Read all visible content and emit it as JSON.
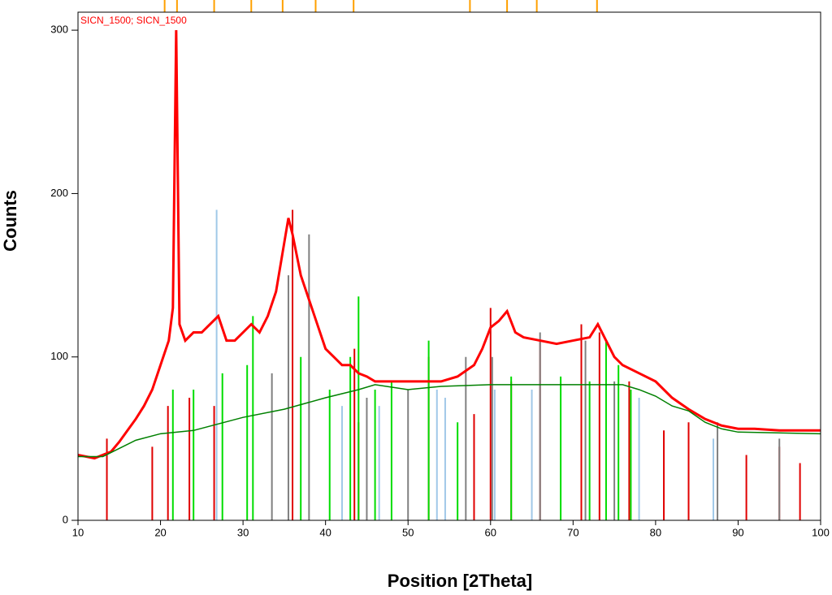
{
  "chart_data": {
    "type": "line",
    "xlabel": "Position [2Theta]",
    "ylabel": "Counts",
    "xlim": [
      10,
      100
    ],
    "ylim": [
      0,
      311
    ],
    "xticks": [
      10,
      20,
      30,
      40,
      50,
      60,
      70,
      80,
      90,
      100
    ],
    "yticks": [
      0,
      100,
      200,
      300
    ],
    "series": [
      {
        "name": "SICN_1500; SICN_1500",
        "color": "#ff0000",
        "x": [
          10,
          12,
          14,
          15,
          16,
          17,
          18,
          19,
          20,
          21,
          21.5,
          21.9,
          22.3,
          23,
          24,
          25,
          26,
          27,
          28,
          29,
          30,
          31,
          32,
          33,
          34,
          35,
          35.5,
          36,
          37,
          38,
          39,
          40,
          41,
          42,
          43,
          44,
          45,
          46,
          47,
          48,
          50,
          52,
          54,
          56,
          58,
          59,
          60,
          61,
          62,
          63,
          64,
          66,
          68,
          70,
          72,
          73,
          74,
          75,
          76,
          78,
          80,
          82,
          84,
          86,
          88,
          90,
          92,
          95,
          98,
          100
        ],
        "values": [
          40,
          38,
          42,
          48,
          55,
          62,
          70,
          80,
          95,
          110,
          130,
          300,
          120,
          110,
          115,
          115,
          120,
          125,
          110,
          110,
          115,
          120,
          115,
          125,
          140,
          170,
          185,
          175,
          150,
          135,
          120,
          105,
          100,
          95,
          95,
          90,
          88,
          85,
          85,
          85,
          85,
          85,
          85,
          88,
          95,
          105,
          118,
          122,
          128,
          115,
          112,
          110,
          108,
          110,
          112,
          120,
          110,
          100,
          95,
          90,
          85,
          75,
          68,
          62,
          58,
          56,
          56,
          55,
          55,
          55
        ]
      },
      {
        "color": "#008000",
        "x": [
          10,
          13,
          15,
          17,
          20,
          24,
          30,
          35,
          40,
          44,
          46,
          50,
          54,
          60,
          76,
          78,
          80,
          82,
          84,
          86,
          88,
          90,
          100
        ],
        "values": [
          39,
          39,
          44,
          49,
          53,
          55,
          63,
          68,
          75,
          80,
          83,
          80,
          82,
          83,
          83,
          80,
          76,
          70,
          67,
          60,
          56,
          54,
          53
        ]
      }
    ],
    "sticks": [
      {
        "color": "#e00000",
        "x": [
          13.5,
          19,
          20.9,
          23.5,
          26.5,
          36,
          43.5,
          44,
          52.5,
          58,
          60,
          62.5,
          66,
          71,
          73.2,
          76.8,
          81,
          84,
          91,
          95,
          97.5
        ],
        "values": [
          50,
          45,
          70,
          75,
          70,
          190,
          105,
          60,
          100,
          65,
          130,
          85,
          110,
          120,
          115,
          85,
          55,
          60,
          40,
          45,
          35
        ]
      },
      {
        "color": "#00dd00",
        "x": [
          21.5,
          24,
          27.5,
          30.5,
          31.2,
          37,
          40.5,
          43,
          44,
          46,
          48,
          52.5,
          56,
          62.5,
          68.5,
          72,
          74,
          75.5,
          77
        ],
        "values": [
          80,
          80,
          90,
          95,
          125,
          100,
          80,
          100,
          137,
          80,
          85,
          110,
          60,
          88,
          88,
          85,
          110,
          95,
          80
        ]
      },
      {
        "color": "#808080",
        "x": [
          33.5,
          35.5,
          38,
          45,
          50,
          57,
          60.2,
          66,
          71.5,
          75,
          87.5,
          95
        ],
        "values": [
          90,
          150,
          175,
          75,
          80,
          100,
          100,
          115,
          110,
          85,
          60,
          50
        ]
      },
      {
        "color": "#a0c8e8",
        "x": [
          26.8,
          42,
          46.5,
          53.5,
          54.5,
          60.5,
          65,
          78,
          87
        ],
        "values": [
          190,
          70,
          70,
          80,
          75,
          80,
          80,
          75,
          50
        ]
      }
    ],
    "markers": {
      "color": "#ffa000",
      "x": [
        20.5,
        22,
        26.5,
        31,
        34.8,
        38.8,
        43.4,
        57.5,
        62,
        65.6,
        72.9
      ]
    }
  }
}
